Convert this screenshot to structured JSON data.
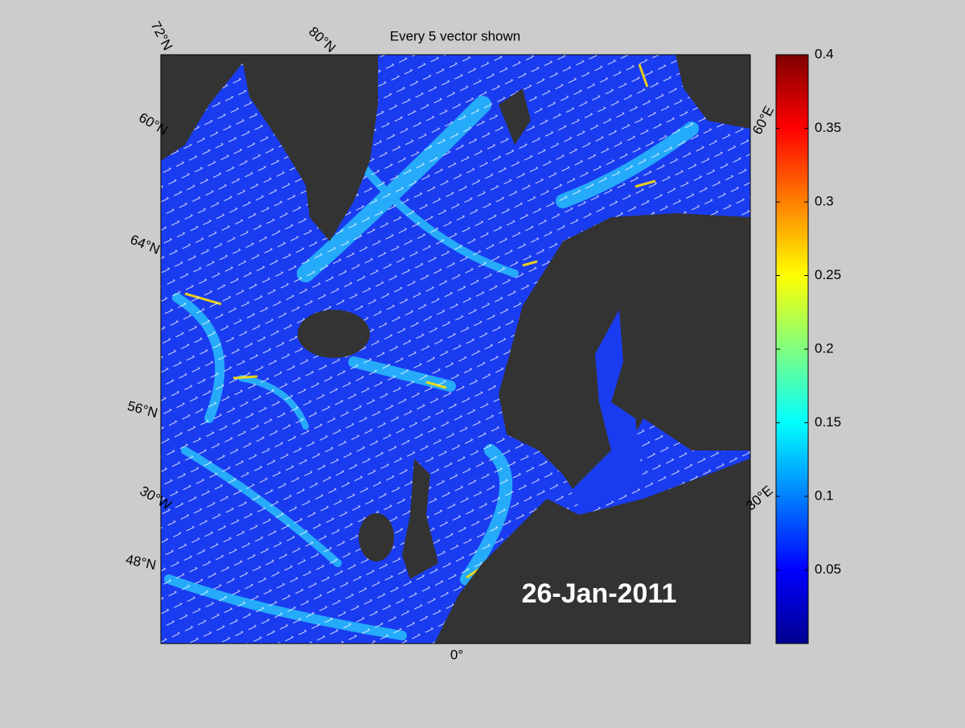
{
  "title": "Every 5 vector shown",
  "date_label": "26-Jan-2011",
  "map_labels": {
    "lat_72": "72°N",
    "lat_80": "80°N",
    "lat_60": "60°N",
    "lat_64": "64°N",
    "lat_56": "56°N",
    "lon_30w": "30°W",
    "lat_48": "48°N",
    "lon_0": "0°",
    "lon_30e": "30°E",
    "lon_60e": "60°E"
  },
  "colorbar": {
    "lim": [
      0,
      0.4
    ],
    "ticks": [
      0.05,
      0.1,
      0.15,
      0.2,
      0.25,
      0.3,
      0.35,
      0.4
    ]
  }
}
